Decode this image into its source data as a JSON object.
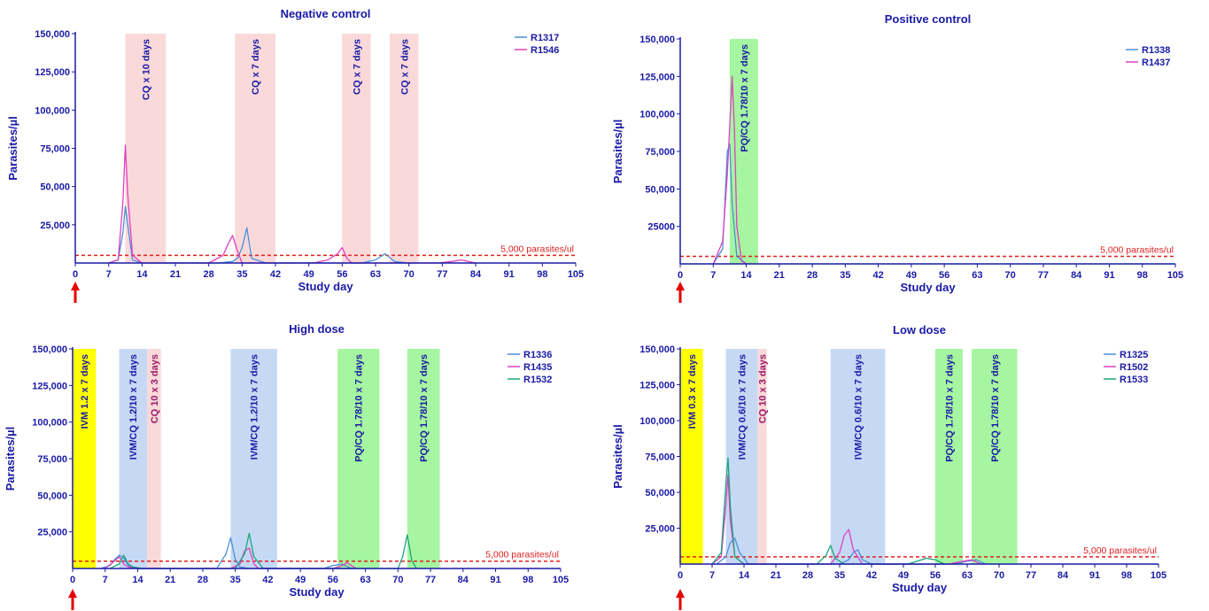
{
  "chart_data": [
    {
      "type": "line",
      "title": "Negative control",
      "xlabel": "Study day",
      "ylabel": "Parasites/µl",
      "xlim": [
        0,
        105
      ],
      "ylim": [
        0,
        150000
      ],
      "xticks": [
        "0",
        "7",
        "14",
        "21",
        "28",
        "35",
        "42",
        "49",
        "56",
        "63",
        "70",
        "77",
        "84",
        "91",
        "98",
        "105"
      ],
      "yticks": [
        {
          "value": 25000,
          "label": "25,000"
        },
        {
          "value": 50000,
          "label": "50,000"
        },
        {
          "value": 75000,
          "label": "75,000"
        },
        {
          "value": 100000,
          "label": "100,000"
        },
        {
          "value": 125000,
          "label": "125,000"
        },
        {
          "value": 150000,
          "label": "150,000"
        }
      ],
      "threshold": {
        "value": 5000,
        "label": "5,000 parasites/ul"
      },
      "legend_position": "top-right",
      "bands": [
        {
          "start": 10.5,
          "end": 19,
          "label": "CQ x 10 days",
          "color": "#f9d9d9",
          "text_color": "#1a1aa6"
        },
        {
          "start": 33.5,
          "end": 42,
          "label": "CQ x 7 days",
          "color": "#f9d9d9",
          "text_color": "#1a1aa6"
        },
        {
          "start": 56,
          "end": 62,
          "label": "CQ x 7 days",
          "color": "#f9d9d9",
          "text_color": "#1a1aa6"
        },
        {
          "start": 66,
          "end": 72,
          "label": "CQ x 7 days",
          "color": "#f9d9d9",
          "text_color": "#1a1aa6"
        }
      ],
      "series": [
        {
          "name": "R1317",
          "color": "#4a90d9",
          "x": [
            7,
            9,
            10,
            10.5,
            11,
            12,
            14,
            30,
            33,
            34,
            35,
            36,
            37,
            40,
            60,
            63,
            65,
            67,
            70
          ],
          "y": [
            0,
            2000,
            20000,
            37000,
            25000,
            2000,
            0,
            0,
            1000,
            3000,
            10000,
            23000,
            3000,
            0,
            0,
            2000,
            6000,
            1000,
            0
          ]
        },
        {
          "name": "R1546",
          "color": "#e040c0",
          "x": [
            7,
            9,
            10,
            10.5,
            11,
            12,
            14,
            28,
            31,
            32,
            33,
            34,
            35,
            50,
            53,
            55,
            56,
            57,
            58,
            76,
            79,
            81,
            84
          ],
          "y": [
            0,
            2000,
            40000,
            77000,
            45000,
            5000,
            0,
            0,
            5000,
            12000,
            18000,
            8000,
            0,
            0,
            2000,
            6000,
            10000,
            3000,
            0,
            0,
            1000,
            2000,
            0
          ]
        }
      ]
    },
    {
      "type": "line",
      "title": "Positive control",
      "xlabel": "Study day",
      "ylabel": "Parasites/µl",
      "xlim": [
        0,
        105
      ],
      "ylim": [
        0,
        150000
      ],
      "xticks": [
        "0",
        "7",
        "14",
        "21",
        "28",
        "35",
        "42",
        "49",
        "56",
        "63",
        "70",
        "77",
        "84",
        "91",
        "98",
        "105"
      ],
      "yticks": [
        {
          "value": 25000,
          "label": "25000"
        },
        {
          "value": 50000,
          "label": "50,000"
        },
        {
          "value": 75000,
          "label": "75,000"
        },
        {
          "value": 100000,
          "label": "100,000"
        },
        {
          "value": 125000,
          "label": "125,000"
        },
        {
          "value": 150000,
          "label": "150,000"
        }
      ],
      "threshold": {
        "value": 5000,
        "label": "5,000 parasites/ul"
      },
      "legend_position": "top-right",
      "bands": [
        {
          "start": 10.5,
          "end": 16.5,
          "label": "PQ/CQ 1.78/10 x 7 days",
          "color": "#a6f5a0",
          "text_color": "#1a1aa6"
        }
      ],
      "series": [
        {
          "name": "R1338",
          "color": "#4a90d9",
          "x": [
            7,
            9,
            10,
            10.5,
            11,
            12,
            14
          ],
          "y": [
            0,
            10000,
            75000,
            80000,
            40000,
            5000,
            0
          ]
        },
        {
          "name": "R1437",
          "color": "#e040c0",
          "x": [
            7,
            9,
            10,
            11,
            11.5,
            12,
            13,
            14
          ],
          "y": [
            0,
            15000,
            60000,
            125000,
            90000,
            25000,
            2000,
            0
          ]
        }
      ]
    },
    {
      "type": "line",
      "title": "High dose",
      "xlabel": "Study day",
      "ylabel": "Parasites/µl",
      "xlim": [
        0,
        105
      ],
      "ylim": [
        0,
        150000
      ],
      "xticks": [
        "0",
        "7",
        "14",
        "21",
        "28",
        "35",
        "42",
        "49",
        "56",
        "63",
        "70",
        "77",
        "84",
        "91",
        "98",
        "105"
      ],
      "yticks": [
        {
          "value": 25000,
          "label": "25,000"
        },
        {
          "value": 50000,
          "label": "50,000"
        },
        {
          "value": 75000,
          "label": "75,000"
        },
        {
          "value": 100000,
          "label": "100,000"
        },
        {
          "value": 125000,
          "label": "125,000"
        },
        {
          "value": 150000,
          "label": "150,000"
        }
      ],
      "threshold": {
        "value": 5000,
        "label": "5,000 parasites/ul"
      },
      "legend_position": "top-right",
      "bands": [
        {
          "start": -0.5,
          "end": 5,
          "label": "IVM 1.2 x 7 days",
          "color": "#ffff00",
          "text_color": "#1a1aa6"
        },
        {
          "start": 10,
          "end": 16,
          "label": "IVM/CQ 1.2/10 x 7 days",
          "color": "#c5d9f5",
          "text_color": "#1a1aa6"
        },
        {
          "start": 16,
          "end": 19,
          "label": "CQ 10 x 3 days",
          "color": "#f9d9d9",
          "text_color": "#9a1a6a"
        },
        {
          "start": 34,
          "end": 44,
          "label": "IVM/CQ 1.2/10 x 7 days",
          "color": "#c5d9f5",
          "text_color": "#1a1aa6"
        },
        {
          "start": 57,
          "end": 66,
          "label": "PQ/CQ 1.78/10 x 7 days",
          "color": "#a6f5a0",
          "text_color": "#1a1aa6"
        },
        {
          "start": 72,
          "end": 79,
          "label": "PQ/CQ 1.78/10 x 7 days",
          "color": "#a6f5a0",
          "text_color": "#1a1aa6"
        }
      ],
      "series": [
        {
          "name": "R1336",
          "color": "#4a90d9",
          "x": [
            6,
            8,
            9,
            10,
            11,
            12,
            14,
            31,
            33,
            34,
            35,
            36,
            38,
            54,
            56,
            58,
            60
          ],
          "y": [
            0,
            2000,
            6000,
            9000,
            7000,
            2000,
            0,
            0,
            10000,
            21000,
            6000,
            1000,
            0,
            0,
            2000,
            3000,
            0
          ]
        },
        {
          "name": "R1435",
          "color": "#e040c0",
          "x": [
            7,
            9,
            10,
            11,
            12,
            14,
            34,
            36,
            37,
            38,
            39,
            40,
            56,
            58,
            59,
            61
          ],
          "y": [
            0,
            5000,
            8000,
            3000,
            1000,
            0,
            0,
            3000,
            12000,
            14000,
            3000,
            0,
            0,
            2000,
            4000,
            0
          ]
        },
        {
          "name": "R1532",
          "color": "#1aa57a",
          "x": [
            8,
            10,
            11,
            12,
            13,
            15,
            35,
            37,
            38,
            39,
            41,
            70,
            71,
            72,
            73,
            74
          ],
          "y": [
            0,
            3000,
            9000,
            3000,
            1000,
            0,
            0,
            10000,
            24000,
            8000,
            0,
            0,
            8000,
            23000,
            5000,
            0
          ]
        }
      ]
    },
    {
      "type": "line",
      "title": "Low dose",
      "xlabel": "Study day",
      "ylabel": "Parasites/µl",
      "xlim": [
        0,
        105
      ],
      "ylim": [
        0,
        150000
      ],
      "xticks": [
        "0",
        "7",
        "14",
        "21",
        "28",
        "35",
        "42",
        "49",
        "56",
        "63",
        "70",
        "77",
        "84",
        "91",
        "98",
        "105"
      ],
      "yticks": [
        {
          "value": 25000,
          "label": "25,000"
        },
        {
          "value": 50000,
          "label": "50,000"
        },
        {
          "value": 75000,
          "label": "75,000"
        },
        {
          "value": 100000,
          "label": "100,000"
        },
        {
          "value": 125000,
          "label": "125,000"
        },
        {
          "value": 150000,
          "label": "150,000"
        }
      ],
      "threshold": {
        "value": 5000,
        "label": "5,000 parasites/ul"
      },
      "legend_position": "top-right",
      "bands": [
        {
          "start": -0.5,
          "end": 5,
          "label": "IVM 0.3 x 7 days",
          "color": "#ffff00",
          "text_color": "#1a1aa6"
        },
        {
          "start": 10,
          "end": 17,
          "label": "IVM/CQ 0.6/10 x 7 days",
          "color": "#c5d9f5",
          "text_color": "#1a1aa6"
        },
        {
          "start": 17,
          "end": 19,
          "label": "CQ 10 x 3 days",
          "color": "#f9d9d9",
          "text_color": "#9a1a6a"
        },
        {
          "start": 33,
          "end": 45,
          "label": "IVM/CQ 0.6/10 x 7 days",
          "color": "#c5d9f5",
          "text_color": "#1a1aa6"
        },
        {
          "start": 56,
          "end": 62,
          "label": "PQ/CQ 1.78/10 x 7 days",
          "color": "#a6f5a0",
          "text_color": "#1a1aa6"
        },
        {
          "start": 64,
          "end": 74,
          "label": "PQ/CQ 1.78/10 x 7 days",
          "color": "#a6f5a0",
          "text_color": "#1a1aa6"
        }
      ],
      "series": [
        {
          "name": "R1325",
          "color": "#4a90d9",
          "x": [
            8,
            10,
            11,
            12,
            13,
            15,
            35,
            37,
            38,
            39,
            40,
            42,
            60,
            63,
            65,
            67
          ],
          "y": [
            0,
            5000,
            15000,
            18000,
            8000,
            0,
            0,
            3000,
            8000,
            10000,
            3000,
            0,
            0,
            2000,
            3000,
            0
          ]
        },
        {
          "name": "R1502",
          "color": "#e040c0",
          "x": [
            7,
            9,
            10,
            10.5,
            11,
            12,
            14,
            33,
            35,
            36,
            37,
            38,
            40,
            59,
            62,
            64,
            66
          ],
          "y": [
            0,
            5000,
            40000,
            62000,
            30000,
            5000,
            0,
            0,
            8000,
            20000,
            24000,
            10000,
            0,
            0,
            2000,
            3000,
            0
          ]
        },
        {
          "name": "R1533",
          "color": "#1aa57a",
          "x": [
            7,
            9,
            10,
            10.5,
            11,
            12,
            14,
            30,
            32,
            33,
            34,
            36,
            50,
            52,
            54,
            56,
            58
          ],
          "y": [
            0,
            8000,
            55000,
            74000,
            40000,
            5000,
            0,
            0,
            6000,
            13000,
            4000,
            0,
            0,
            2000,
            4000,
            3000,
            0
          ]
        }
      ]
    }
  ]
}
